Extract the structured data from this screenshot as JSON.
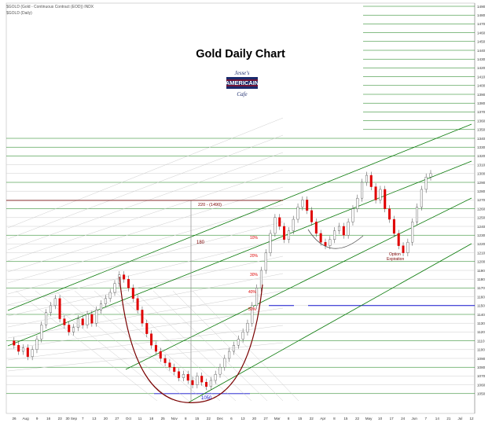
{
  "header": {
    "symbol_line": "$GOLD (Gold - Continuous Contract (EOD)) INDX",
    "sub_line": "$GOLD (Daily)"
  },
  "chart_data": {
    "type": "candlestick",
    "title": "Gold Daily Chart",
    "ylim": [
      1040,
      1490
    ],
    "y_ticks": [
      1050,
      1060,
      1070,
      1080,
      1090,
      1100,
      1110,
      1120,
      1130,
      1140,
      1150,
      1160,
      1170,
      1180,
      1190,
      1200,
      1210,
      1220,
      1230,
      1240,
      1250,
      1260,
      1270,
      1280,
      1290,
      1300,
      1310,
      1320,
      1330,
      1340,
      1350,
      1360,
      1370,
      1380,
      1390,
      1400,
      1410,
      1420,
      1430,
      1440,
      1450,
      1460,
      1470,
      1480,
      1490
    ],
    "x_ticks": [
      "26",
      "Aug",
      "9",
      "16",
      "23",
      "30 Sep",
      "7",
      "13",
      "20",
      "27",
      "Oct",
      "11",
      "18",
      "25",
      "Nov",
      "8",
      "15",
      "22",
      "Dec",
      "6",
      "13",
      "20",
      "27",
      "Mar",
      "8",
      "15",
      "22",
      "Apr",
      "8",
      "15",
      "22",
      "May",
      "10",
      "17",
      "24",
      "Jun",
      "7",
      "14",
      "21",
      "Jul",
      "12"
    ],
    "annotations": {
      "target_label": "220 - (1490)",
      "label_180": "180",
      "label_1050": "1050",
      "pct_10": "10%",
      "pct_20": "20%",
      "pct_30": "30%",
      "pct_40": "40%",
      "pct_50": "50%",
      "option_expiration_1": "Option",
      "option_expiration_2": "Expiration"
    },
    "logo": {
      "line1": "Jesse's",
      "line2": "AMERICAIN",
      "line3": "Cafe"
    },
    "colors": {
      "up": "#ffffff",
      "down": "#e00000",
      "channel": "#0a7a0a",
      "fib": "#cccccc",
      "cup": "#7a0000",
      "level": "#1010cc"
    },
    "ohlc_close_path": [
      [
        0,
        1110
      ],
      [
        2,
        1105
      ],
      [
        4,
        1098
      ],
      [
        6,
        1102
      ],
      [
        8,
        1092
      ],
      [
        10,
        1100
      ],
      [
        12,
        1112
      ],
      [
        14,
        1128
      ],
      [
        16,
        1142
      ],
      [
        18,
        1150
      ],
      [
        20,
        1158
      ],
      [
        22,
        1135
      ],
      [
        24,
        1128
      ],
      [
        26,
        1120
      ],
      [
        28,
        1125
      ],
      [
        30,
        1135
      ],
      [
        32,
        1128
      ],
      [
        34,
        1140
      ],
      [
        36,
        1130
      ],
      [
        38,
        1145
      ],
      [
        40,
        1152
      ],
      [
        42,
        1158
      ],
      [
        44,
        1165
      ],
      [
        46,
        1175
      ],
      [
        48,
        1185
      ],
      [
        50,
        1180
      ],
      [
        52,
        1170
      ],
      [
        54,
        1158
      ],
      [
        56,
        1145
      ],
      [
        58,
        1130
      ],
      [
        60,
        1118
      ],
      [
        62,
        1105
      ],
      [
        64,
        1098
      ],
      [
        66,
        1090
      ],
      [
        68,
        1085
      ],
      [
        70,
        1080
      ],
      [
        72,
        1075
      ],
      [
        74,
        1068
      ],
      [
        76,
        1072
      ],
      [
        78,
        1065
      ],
      [
        80,
        1060
      ],
      [
        82,
        1070
      ],
      [
        84,
        1063
      ],
      [
        86,
        1058
      ],
      [
        88,
        1065
      ],
      [
        90,
        1072
      ],
      [
        92,
        1080
      ],
      [
        94,
        1090
      ],
      [
        96,
        1098
      ],
      [
        98,
        1105
      ],
      [
        100,
        1112
      ],
      [
        102,
        1120
      ],
      [
        104,
        1130
      ],
      [
        106,
        1150
      ],
      [
        108,
        1170
      ],
      [
        110,
        1190
      ],
      [
        112,
        1210
      ],
      [
        114,
        1232
      ],
      [
        116,
        1250
      ],
      [
        118,
        1240
      ],
      [
        120,
        1225
      ],
      [
        122,
        1235
      ],
      [
        124,
        1248
      ],
      [
        126,
        1262
      ],
      [
        128,
        1270
      ],
      [
        130,
        1258
      ],
      [
        132,
        1245
      ],
      [
        134,
        1232
      ],
      [
        136,
        1222
      ],
      [
        138,
        1218
      ],
      [
        140,
        1225
      ],
      [
        142,
        1235
      ],
      [
        144,
        1240
      ],
      [
        146,
        1230
      ],
      [
        148,
        1245
      ],
      [
        150,
        1260
      ],
      [
        152,
        1272
      ],
      [
        154,
        1290
      ],
      [
        156,
        1298
      ],
      [
        158,
        1285
      ],
      [
        160,
        1270
      ],
      [
        162,
        1282
      ],
      [
        164,
        1260
      ],
      [
        166,
        1248
      ],
      [
        168,
        1232
      ],
      [
        170,
        1218
      ],
      [
        172,
        1210
      ],
      [
        174,
        1222
      ],
      [
        176,
        1245
      ],
      [
        178,
        1262
      ],
      [
        180,
        1282
      ],
      [
        182,
        1296
      ],
      [
        184,
        1300
      ]
    ]
  }
}
